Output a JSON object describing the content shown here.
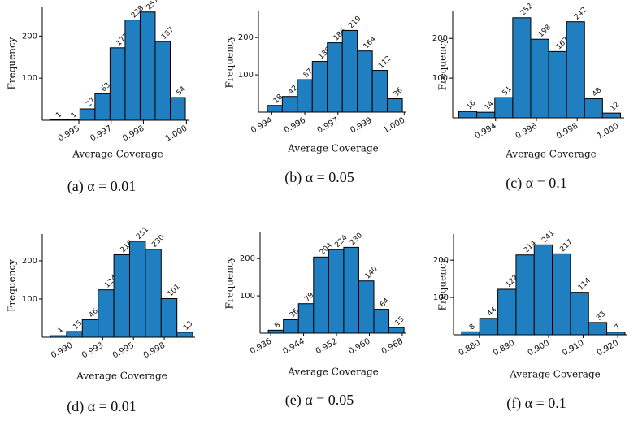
{
  "chart_data": [
    {
      "type": "histogram",
      "caption": "(a) α = 0.01",
      "xlabel": "Average Coverage",
      "ylabel": "Frequency",
      "color": "#1f7fc1",
      "bins": [
        0.99365,
        0.99435,
        0.99505,
        0.99575,
        0.99645,
        0.99715,
        0.99785,
        0.99855,
        0.99925,
        0.99995
      ],
      "values": [
        1,
        1,
        27,
        63,
        172,
        238,
        257,
        187,
        54
      ],
      "xlim": [
        0.9933,
        1.0001
      ],
      "xticks": [
        0.995,
        {
          "value": 0.9965,
          "label": "0.997"
        },
        0.998,
        {
          "value": 1,
          "label": "1.000"
        }
      ],
      "ylim": [
        0,
        270
      ],
      "yticks": [
        100,
        200
      ]
    },
    {
      "type": "histogram",
      "caption": "(b) α = 0.05",
      "xlabel": "Average Coverage",
      "ylabel": "Frequency",
      "color": "#1f7fc1",
      "bins": [
        0.9938,
        0.99448,
        0.99516,
        0.99584,
        0.99652,
        0.9972,
        0.99788,
        0.99856,
        0.99924,
        0.99992
      ],
      "values": [
        18,
        42,
        87,
        136,
        186,
        219,
        164,
        112,
        36
      ],
      "xlim": [
        0.9934,
        1.0001
      ],
      "xticks": [
        0.994,
        {
          "value": 0.9955,
          "label": "0.996"
        },
        0.997,
        {
          "value": 0.9985,
          "label": "0.999"
        },
        {
          "value": 1,
          "label": "1.000"
        }
      ],
      "ylim": [
        0,
        270
      ],
      "yticks": [
        100,
        200
      ]
    },
    {
      "type": "histogram",
      "caption": "(c) α = 0.1",
      "xlabel": "Average Coverage",
      "ylabel": "Frequency",
      "color": "#1f7fc1",
      "bins": [
        0.9922,
        0.99308,
        0.99396,
        0.99484,
        0.99572,
        0.9966,
        0.99748,
        0.99836,
        0.99924,
        1.00012
      ],
      "values": [
        16,
        14,
        51,
        252,
        198,
        167,
        242,
        48,
        12
      ],
      "xlim": [
        0.9919,
        1.0003
      ],
      "xticks": [
        0.994,
        0.996,
        0.998,
        {
          "value": 1,
          "label": "1.000"
        }
      ],
      "ylim": [
        0,
        270
      ],
      "yticks": [
        100,
        200
      ]
    },
    {
      "type": "histogram",
      "caption": "(d) α = 0.01",
      "xlabel": "Average Coverage",
      "ylabel": "Frequency",
      "color": "#1f7fc1",
      "bins": [
        0.98829,
        0.98957,
        0.99085,
        0.99213,
        0.99341,
        0.99469,
        0.99597,
        0.99725,
        0.99853,
        0.99981
      ],
      "values": [
        4,
        15,
        46,
        124,
        216,
        251,
        230,
        101,
        13
      ],
      "xlim": [
        0.9876,
        1.0
      ],
      "xticks": [
        {
          "value": 0.99,
          "label": "0.990"
        },
        {
          "value": 0.9925,
          "label": "0.993"
        },
        0.995,
        {
          "value": 0.9975,
          "label": "0.998"
        }
      ],
      "ylim": [
        0,
        270
      ],
      "yticks": [
        100,
        200
      ]
    },
    {
      "type": "histogram",
      "caption": "(e) α = 0.05",
      "xlabel": "Average Coverage",
      "ylabel": "Frequency",
      "color": "#1f7fc1",
      "bins": [
        0.9354,
        0.93907,
        0.94274,
        0.94641,
        0.95008,
        0.95375,
        0.95742,
        0.96109,
        0.96476,
        0.96843
      ],
      "values": [
        8,
        36,
        79,
        204,
        224,
        230,
        140,
        64,
        15
      ],
      "xlim": [
        0.9334,
        0.969
      ],
      "xticks": [
        0.936,
        0.944,
        0.952,
        {
          "value": 0.96,
          "label": "0.960"
        },
        0.968
      ],
      "ylim": [
        0,
        270
      ],
      "yticks": [
        100,
        200
      ]
    },
    {
      "type": "histogram",
      "caption": "(f) α = 0.1",
      "xlabel": "Average Coverage",
      "ylabel": "Frequency",
      "color": "#1f7fc1",
      "bins": [
        0.87483,
        0.88008,
        0.88533,
        0.89058,
        0.89583,
        0.90108,
        0.90633,
        0.91158,
        0.91683,
        0.92208
      ],
      "values": [
        8,
        44,
        122,
        214,
        241,
        217,
        114,
        33,
        7
      ],
      "xlim": [
        0.8725,
        0.9228
      ],
      "xticks": [
        {
          "value": 0.88,
          "label": "0.880"
        },
        {
          "value": 0.89,
          "label": "0.890"
        },
        {
          "value": 0.9,
          "label": "0.900"
        },
        {
          "value": 0.91,
          "label": "0.910"
        },
        {
          "value": 0.92,
          "label": "0.920"
        }
      ],
      "ylim": [
        0,
        270
      ],
      "yticks": [
        100,
        200
      ]
    }
  ]
}
